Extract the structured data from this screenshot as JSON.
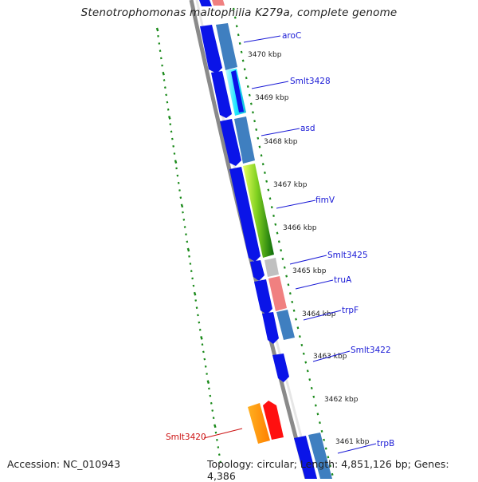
{
  "title": "Stenotrophomonas maltophilia K279a, complete genome",
  "footer": {
    "accession": "Accession: NC_010943",
    "summary": "Topology: circular; Length: 4,851,126 bp; Genes: 4,386"
  },
  "colors": {
    "backbone": "#8a8a8a",
    "tick": "#1a8a1a",
    "forward_cds": "#0a14e8",
    "label_blue": "#1a1ad6",
    "label_red": "#cc1111"
  },
  "kbp_labels": [
    "3470 kbp",
    "3469 kbp",
    "3468 kbp",
    "3467 kbp",
    "3466 kbp",
    "3465 kbp",
    "3464 kbp",
    "3463 kbp",
    "3462 kbp",
    "3461 kbp"
  ],
  "gene_labels": [
    "aroC",
    "Smlt3428",
    "asd",
    "fimV",
    "Smlt3425",
    "truA",
    "trpF",
    "Smlt3422",
    "Smlt3420",
    "trpB"
  ]
}
